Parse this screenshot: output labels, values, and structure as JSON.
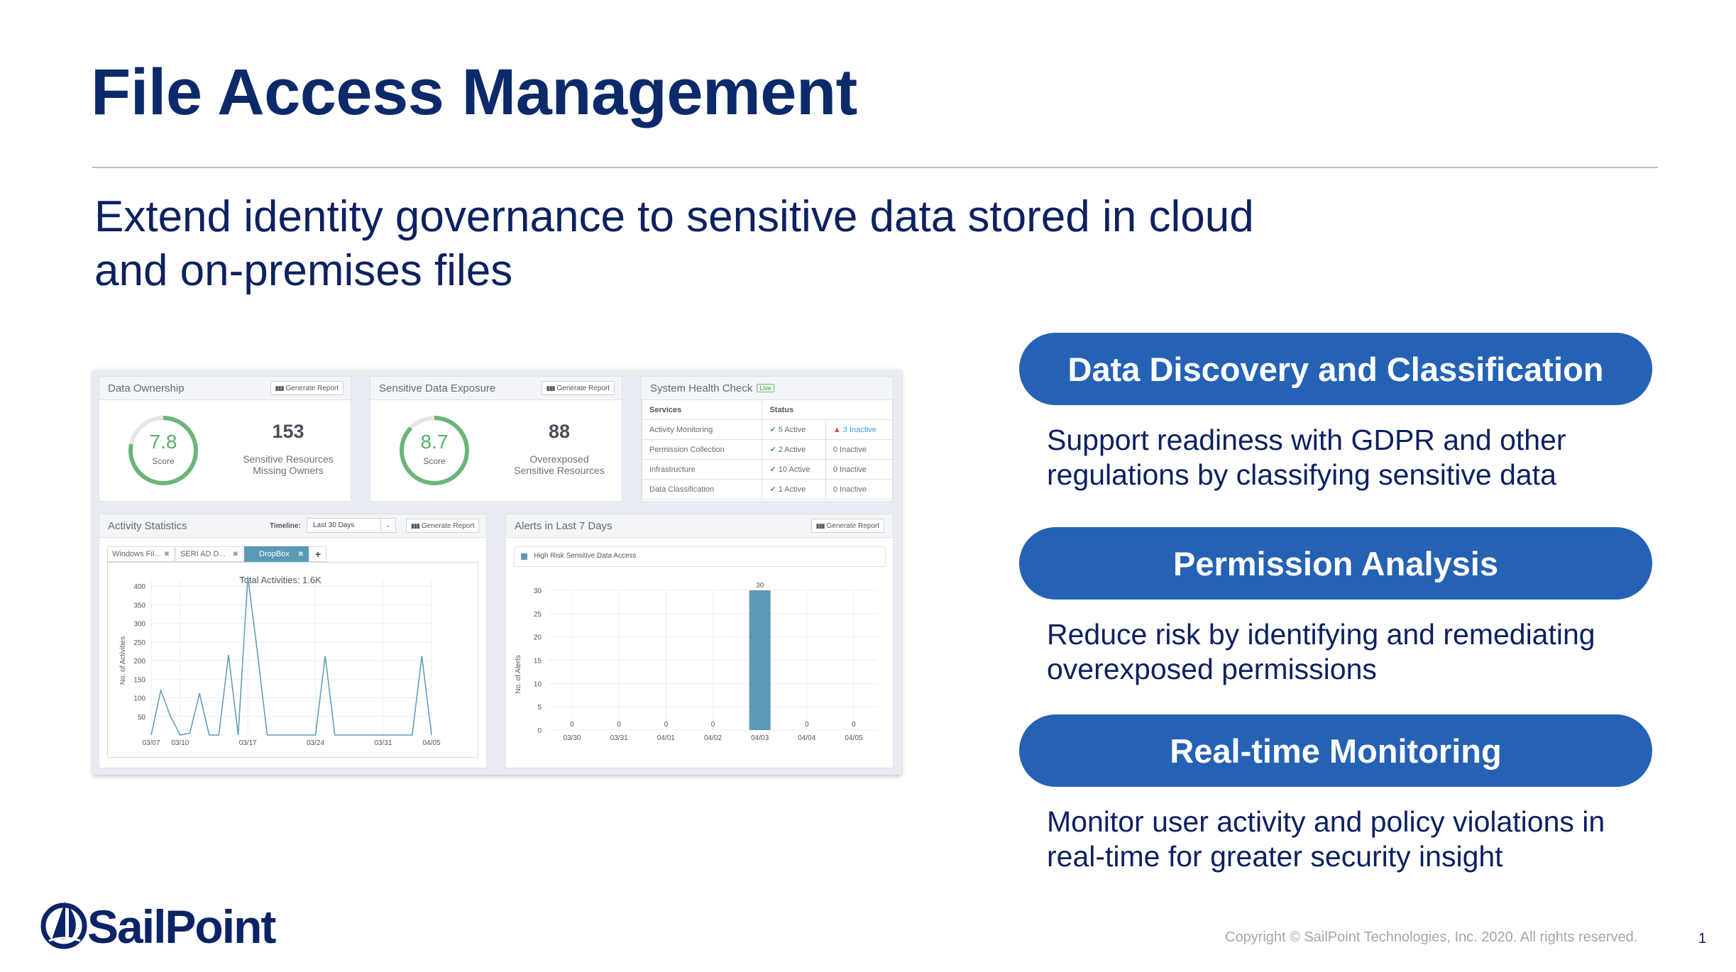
{
  "slide": {
    "title": "File Access Management",
    "subtitle_lines": [
      "Extend identity governance to sensitive data stored in cloud",
      "and on-premises files"
    ],
    "features": [
      {
        "heading": "Data Discovery and Classification",
        "desc_lines": [
          "Support readiness with GDPR and other",
          "regulations by classifying sensitive data"
        ]
      },
      {
        "heading": "Permission Analysis",
        "desc_lines": [
          "Reduce risk by identifying and remediating",
          "overexposed permissions"
        ]
      },
      {
        "heading": "Real-time Monitoring",
        "desc_lines": [
          "Monitor user activity and policy violations in",
          "real-time for greater security insight"
        ]
      }
    ],
    "copyright": "Copyright © SailPoint Technologies, Inc. 2020. All rights reserved.",
    "page_number": "1",
    "logo": {
      "text": "SailPoint",
      "icon": "sailboat-circle-icon"
    },
    "colors": {
      "title": "#0c2a6a",
      "pill": "#2562b4",
      "body_text": "#0d2160",
      "gauge_green": "#5aaf6c",
      "chart_blue": "#5a9ab5"
    }
  },
  "dashboard": {
    "generate_report_label": "Generate Report",
    "data_ownership": {
      "title": "Data Ownership",
      "score": "7.8",
      "score_label": "Score",
      "gauge_fill": 0.78,
      "count": "153",
      "count_label_lines": [
        "Sensitive Resources",
        "Missing Owners"
      ]
    },
    "sensitive_exposure": {
      "title": "Sensitive Data Exposure",
      "score": "8.7",
      "score_label": "Score",
      "gauge_fill": 0.87,
      "count": "88",
      "count_label_lines": [
        "Overexposed",
        "Sensitive Resources"
      ]
    },
    "health": {
      "title": "System Health Check",
      "badge": "Live",
      "headers": [
        "Services",
        "Status"
      ],
      "rows": [
        {
          "service": "Activity Monitoring",
          "active": "5 Active",
          "inactive": "3 Inactive",
          "warning": true
        },
        {
          "service": "Permission Collection",
          "active": "2 Active",
          "inactive": "0 Inactive",
          "warning": false
        },
        {
          "service": "Infrastructure",
          "active": "10 Active",
          "inactive": "0 Inactive",
          "warning": false
        },
        {
          "service": "Data Classification",
          "active": "1 Active",
          "inactive": "0 Inactive",
          "warning": false
        }
      ]
    },
    "activity": {
      "title": "Activity Statistics",
      "timeline_label": "Timeline:",
      "timeline_value": "Last 30 Days",
      "tabs": [
        {
          "label": "Windows Fil...",
          "active": false
        },
        {
          "label": "SERI AD D...",
          "active": false
        },
        {
          "label": "DropBox",
          "active": true
        }
      ],
      "add_tab": "+"
    },
    "alerts": {
      "title": "Alerts in Last 7 Days"
    }
  },
  "chart_data": [
    {
      "type": "line",
      "title": "Total Activities: 1.6K",
      "ylabel": "No. of Activities",
      "xlabel": "",
      "x": [
        "03/07",
        "03/08",
        "03/09",
        "03/10",
        "03/11",
        "03/12",
        "03/13",
        "03/14",
        "03/15",
        "03/16",
        "03/17",
        "03/18",
        "03/19",
        "03/20",
        "03/21",
        "03/22",
        "03/23",
        "03/24",
        "03/25",
        "03/26",
        "03/27",
        "03/28",
        "03/29",
        "03/30",
        "03/31",
        "04/01",
        "04/02",
        "04/03",
        "04/04",
        "04/05"
      ],
      "values": [
        0,
        120,
        50,
        0,
        5,
        112,
        0,
        0,
        215,
        0,
        425,
        220,
        0,
        0,
        0,
        0,
        0,
        0,
        212,
        0,
        0,
        0,
        0,
        0,
        0,
        0,
        0,
        0,
        212,
        0
      ],
      "xticks": [
        "03/07",
        "03/10",
        "03/17",
        "03/24",
        "03/31",
        "04/05"
      ],
      "yticks": [
        50,
        100,
        150,
        200,
        250,
        300,
        350,
        400
      ],
      "ylim": [
        0,
        430
      ],
      "grid": true,
      "color": "#5a9ab5"
    },
    {
      "type": "bar",
      "categories": [
        "03/30",
        "03/31",
        "04/01",
        "04/02",
        "04/03",
        "04/04",
        "04/05"
      ],
      "series": [
        {
          "name": "High Risk Sensitive Data Access",
          "values": [
            0,
            0,
            0,
            0,
            30,
            0,
            0
          ]
        }
      ],
      "ylabel": "No. of Alerts",
      "xlabel": "",
      "yticks": [
        0,
        5,
        10,
        15,
        20,
        25,
        30
      ],
      "ylim": [
        0,
        30
      ],
      "grid": true,
      "legend": "top",
      "data_labels": true,
      "color": "#5a9ab5"
    }
  ]
}
